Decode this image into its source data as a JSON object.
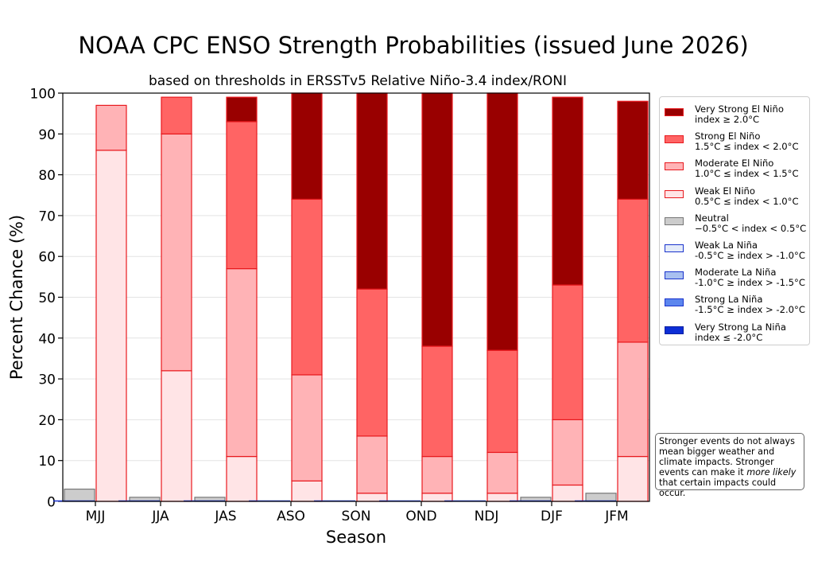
{
  "chart_data": {
    "type": "bar",
    "title": "NOAA CPC ENSO Strength Probabilities (issued June 2026)",
    "subtitle": "based on thresholds in ERSSTv5 Relative Niño-3.4 index/RONI",
    "xlabel": "Season",
    "ylabel": "Percent Chance (%)",
    "ylim": [
      0,
      100
    ],
    "yticks": [
      "0",
      "10",
      "20",
      "30",
      "40",
      "50",
      "60",
      "70",
      "80",
      "90",
      "100"
    ],
    "grid": "horizontal",
    "legend_position": "right",
    "categories": [
      "MJJ",
      "JJA",
      "JAS",
      "ASO",
      "SON",
      "OND",
      "NDJ",
      "DJF",
      "JFM"
    ],
    "neutral": {
      "name": "Neutral",
      "range": "−0.5°C < index < 0.5°C",
      "fill": "#cccccc",
      "edge": "#777777",
      "values": [
        3,
        1,
        1,
        0,
        0,
        0,
        0,
        1,
        2
      ]
    },
    "la_nina_series": [
      {
        "name": "Weak La Niña",
        "range": "-0.5°C ≥ index > -1.0°C",
        "fill": "#e4ebf9",
        "edge": "#1a33cc",
        "values": [
          0,
          0,
          0,
          0,
          0,
          0,
          0,
          0,
          0
        ]
      },
      {
        "name": "Moderate La Niña",
        "range": "-1.0°C ≥ index > -1.5°C",
        "fill": "#a9c0f0",
        "edge": "#1a33cc",
        "values": [
          0,
          0,
          0,
          0,
          0,
          0,
          0,
          0,
          0
        ]
      },
      {
        "name": "Strong La Niña",
        "range": "-1.5°C ≥ index > -2.0°C",
        "fill": "#5c86ee",
        "edge": "#1a33cc",
        "values": [
          0,
          0,
          0,
          0,
          0,
          0,
          0,
          0,
          0
        ]
      },
      {
        "name": "Very Strong La Niña",
        "range": "index ≤ -2.0°C",
        "fill": "#0d2ed6",
        "edge": "#0a1fa0",
        "values": [
          0,
          0,
          0,
          0,
          0,
          0,
          0,
          0,
          0
        ]
      }
    ],
    "el_nino_series": [
      {
        "name": "Weak El Niño",
        "range": "0.5°C ≤ index < 1.0°C",
        "fill": "#ffe4e6",
        "edge": "#e8191e",
        "values": [
          86,
          32,
          11,
          5,
          2,
          2,
          2,
          4,
          11
        ]
      },
      {
        "name": "Moderate El Niño",
        "range": "1.0°C ≤ index < 1.5°C",
        "fill": "#ffb3b6",
        "edge": "#e8191e",
        "values": [
          11,
          58,
          46,
          26,
          14,
          9,
          10,
          16,
          28
        ]
      },
      {
        "name": "Strong El Niño",
        "range": "1.5°C ≤ index < 2.0°C",
        "fill": "#ff6464",
        "edge": "#e8191e",
        "values": [
          0,
          9,
          36,
          43,
          36,
          27,
          25,
          33,
          35
        ]
      },
      {
        "name": "Very Strong El Niño",
        "range": "index ≥ 2.0°C",
        "fill": "#990000",
        "edge": "#e8191e",
        "values": [
          0,
          0,
          6,
          26,
          48,
          62,
          63,
          46,
          24
        ]
      }
    ],
    "legend_order": [
      "Very Strong El Niño",
      "Strong El Niño",
      "Moderate El Niño",
      "Weak El Niño",
      "Neutral",
      "Weak La Niña",
      "Moderate La Niña",
      "Strong La Niña",
      "Very Strong La Niña"
    ],
    "note_parts": [
      "Stronger events do not always mean bigger weather and climate impacts. Stronger events can make it ",
      "more likely",
      " that certain impacts could occur."
    ]
  }
}
